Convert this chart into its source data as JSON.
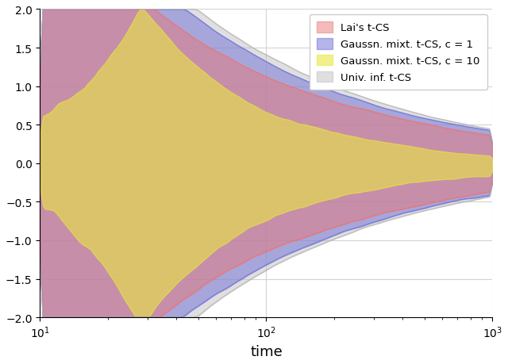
{
  "xlabel": "time",
  "ylim": [
    -2.0,
    2.0
  ],
  "yticks": [
    -2.0,
    -1.5,
    -1.0,
    -0.5,
    0.0,
    0.5,
    1.0,
    1.5,
    2.0
  ],
  "legend_labels": [
    "Lai's t-CS",
    "Gaussn. mixt. t-CS, c = 1",
    "Gaussn. mixt. t-CS, c = 10",
    "Univ. inf. t-CS"
  ],
  "color_lai": "#e87878",
  "color_gauss1": "#7878d8",
  "color_gauss10": "#e8e840",
  "color_univ": "#b8b8b8",
  "alpha_lai": 0.5,
  "alpha_gauss1": 0.55,
  "alpha_gauss10": 0.6,
  "alpha_univ": 0.45,
  "n_points": 300,
  "seed": 42
}
